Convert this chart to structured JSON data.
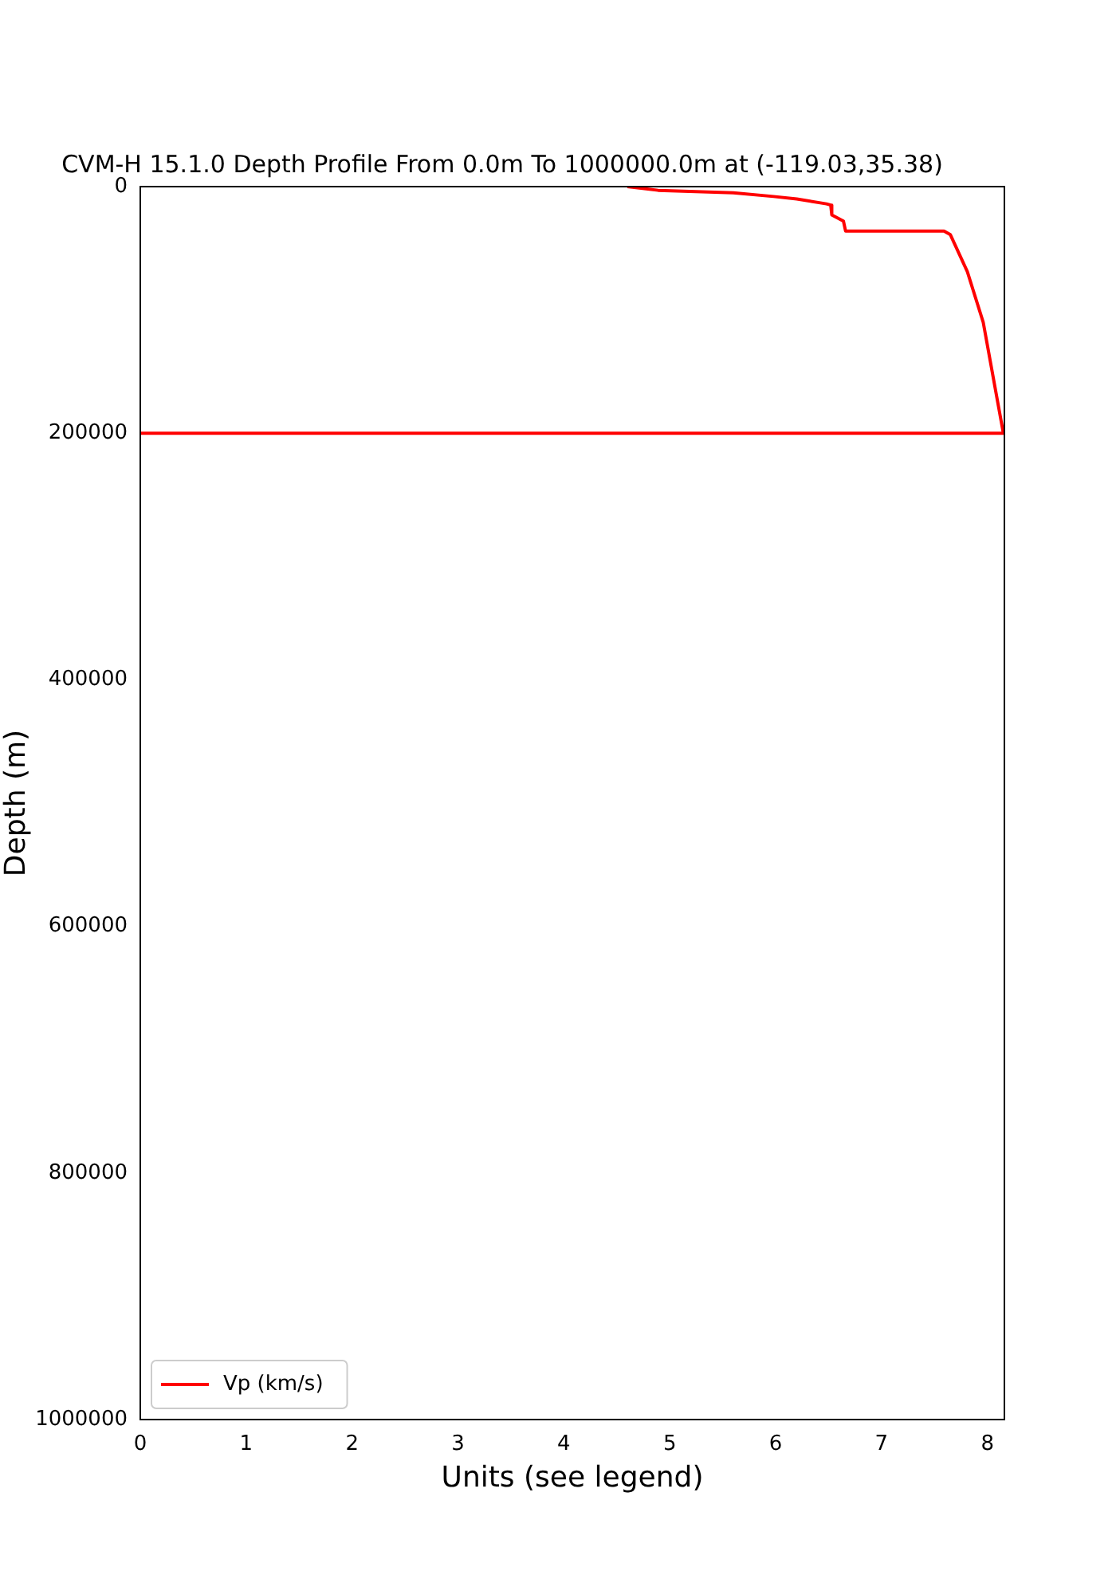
{
  "chart_data": {
    "type": "line",
    "title": "CVM-H 15.1.0 Depth Profile From 0.0m To 1000000.0m at (-119.03,35.38)",
    "xlabel": "Units (see legend)",
    "ylabel": "Depth (m)",
    "series": [
      {
        "name": "Vp (km/s)",
        "color": "#ff0000",
        "x": [
          4.6,
          4.89,
          5.6,
          5.98,
          6.2,
          6.48,
          6.52,
          6.53,
          6.64,
          6.66,
          7.59,
          7.65,
          7.81,
          7.96,
          8.15,
          0
        ],
        "values": [
          0,
          3000,
          5000,
          8000,
          10000,
          14000,
          15000,
          23000,
          28000,
          36000,
          36000,
          39000,
          69000,
          110000,
          200000,
          200000
        ]
      }
    ],
    "xlim": [
      0,
      8.16
    ],
    "xticks": [
      0,
      1,
      2,
      3,
      4,
      5,
      6,
      7,
      8
    ],
    "ylim": [
      1000000,
      0
    ],
    "yticks": [
      0,
      200000,
      400000,
      600000,
      800000,
      1000000
    ],
    "grid": false,
    "legend": "bottom left",
    "line_style": "solid",
    "marker": "none"
  }
}
